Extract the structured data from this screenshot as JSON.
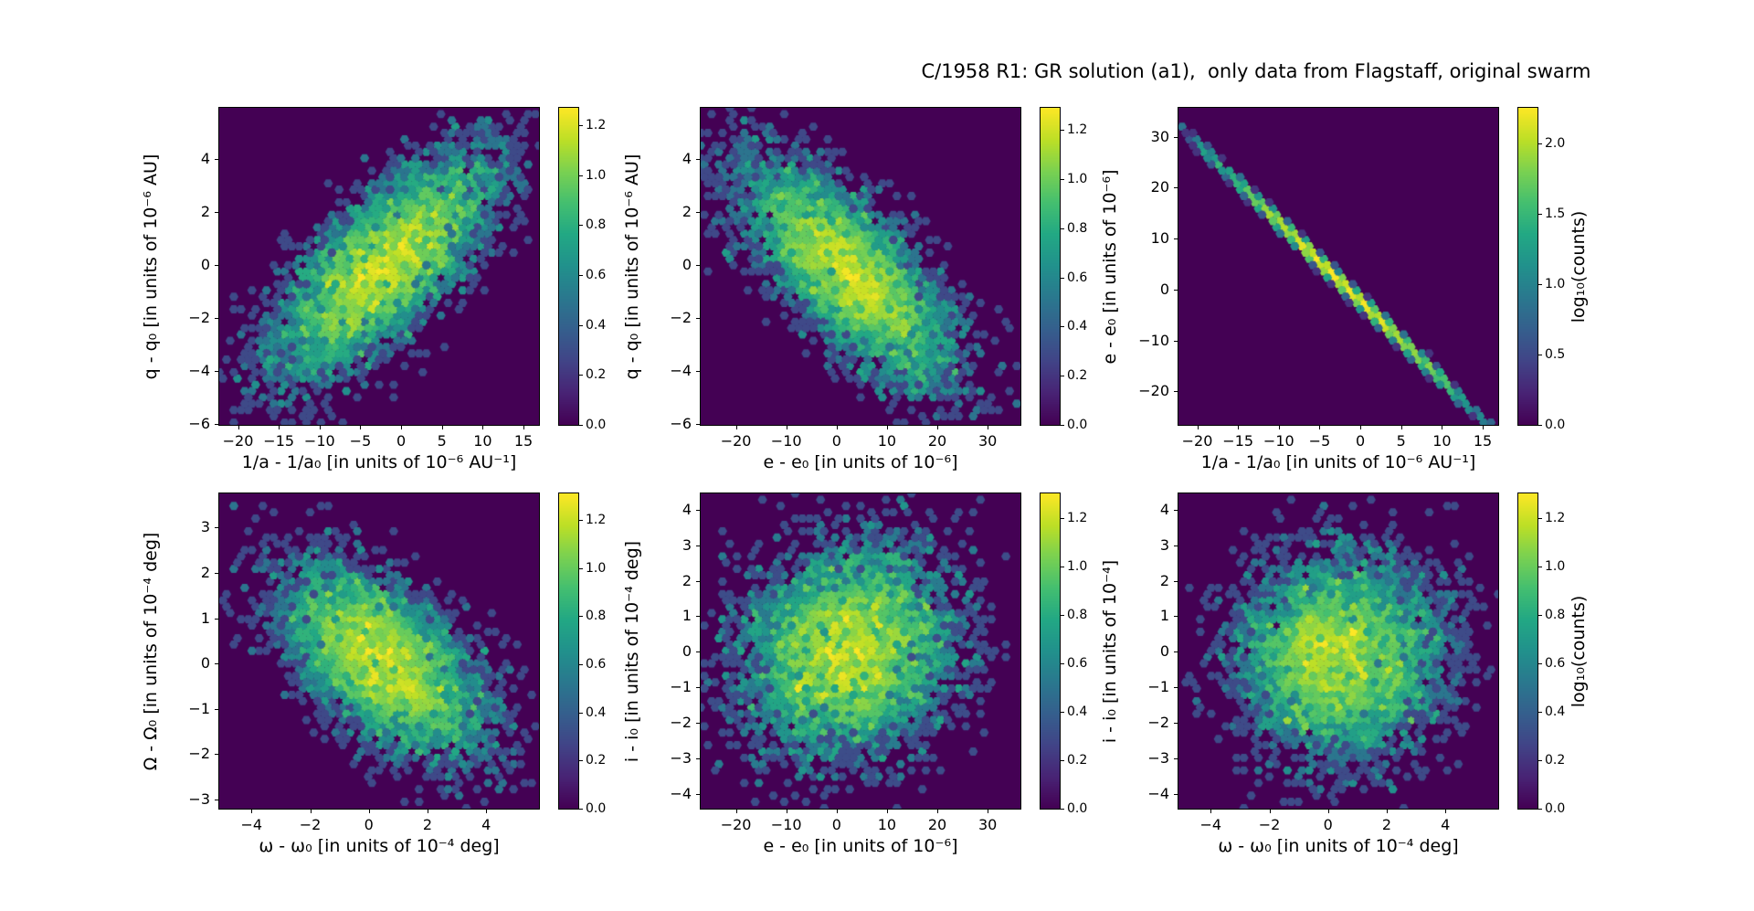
{
  "title": "C/1958 R1: GR solution (a1),  only data from Flagstaff, original swarm",
  "colormap": {
    "name": "viridis",
    "background": "#440154",
    "stops": [
      "#440154",
      "#482475",
      "#414487",
      "#355f8d",
      "#2a788e",
      "#21918c",
      "#22a884",
      "#44bf70",
      "#7ad151",
      "#bddf26",
      "#fde725"
    ]
  },
  "chart_data": [
    {
      "type": "hexbin",
      "xlabel": "1/a - 1/a₀ [in units of 10⁻⁶ AU⁻¹]",
      "ylabel": "q - q₀ [in units of 10⁻⁶ AU]",
      "xlim": [
        -22.3,
        16.9
      ],
      "ylim": [
        -6.05,
        5.95
      ],
      "xticks": [
        -20,
        -15,
        -10,
        -5,
        0,
        5,
        10,
        15
      ],
      "yticks": [
        4,
        2,
        0,
        -2,
        -4,
        -6
      ],
      "distribution": {
        "kind": "gaussian",
        "n": 5000,
        "center": [
          -2,
          0
        ],
        "sigma": [
          6.8,
          2.1
        ],
        "rho": 0.72
      },
      "colorbar": {
        "vmax": 1.27,
        "ticks": [
          0.0,
          0.2,
          0.4,
          0.6,
          0.8,
          1.0,
          1.2
        ],
        "label": null
      }
    },
    {
      "type": "hexbin",
      "xlabel": "e - e₀ [in units of 10⁻⁶]",
      "ylabel": "q - q₀ [in units of 10⁻⁶ AU]",
      "xlim": [
        -27.0,
        36.5
      ],
      "ylim": [
        -6.05,
        5.95
      ],
      "xticks": [
        -20,
        -10,
        0,
        10,
        20,
        30
      ],
      "yticks": [
        4,
        2,
        0,
        -2,
        -4,
        -6
      ],
      "distribution": {
        "kind": "gaussian",
        "n": 5000,
        "center": [
          2.5,
          -0.3
        ],
        "sigma": [
          10.5,
          2.1
        ],
        "rho": -0.72
      },
      "colorbar": {
        "vmax": 1.29,
        "ticks": [
          0.0,
          0.2,
          0.4,
          0.6,
          0.8,
          1.0,
          1.2
        ],
        "label": null
      }
    },
    {
      "type": "hexbin",
      "xlabel": "1/a - 1/a₀ [in units of 10⁻⁶ AU⁻¹]",
      "ylabel": "e - e₀ [in units of 10⁻⁶]",
      "xlim": [
        -22.3,
        16.9
      ],
      "ylim": [
        -26.6,
        35.7
      ],
      "xticks": [
        -20,
        -15,
        -10,
        -5,
        0,
        5,
        10,
        15
      ],
      "yticks": [
        30,
        20,
        10,
        0,
        -10,
        -20
      ],
      "distribution": {
        "kind": "line",
        "n": 5000,
        "x_center": -2.5,
        "x_sigma": 6.8,
        "slope": -1.55,
        "intercept": -2.3,
        "noise": 0.45
      },
      "colorbar": {
        "vmax": 2.25,
        "ticks": [
          0.0,
          0.5,
          1.0,
          1.5,
          2.0
        ],
        "label": "log₁₀(counts)"
      }
    },
    {
      "type": "hexbin",
      "xlabel": "ω - ω₀ [in units of 10⁻⁴ deg]",
      "ylabel": "Ω - Ω₀ [in units of 10⁻⁴ deg]",
      "xlim": [
        -5.1,
        5.8
      ],
      "ylim": [
        -3.2,
        3.75
      ],
      "xticks": [
        -4,
        -2,
        0,
        2,
        4
      ],
      "yticks": [
        3,
        2,
        1,
        0,
        -1,
        -2,
        -3
      ],
      "distribution": {
        "kind": "gaussian",
        "n": 5000,
        "center": [
          0.5,
          0.05
        ],
        "sigma": [
          1.7,
          1.05
        ],
        "rho": -0.58
      },
      "colorbar": {
        "vmax": 1.31,
        "ticks": [
          0.0,
          0.2,
          0.4,
          0.6,
          0.8,
          1.0,
          1.2
        ],
        "label": null
      }
    },
    {
      "type": "hexbin",
      "xlabel": "e - e₀ [in units of 10⁻⁶]",
      "ylabel": "i - i₀ [in units of 10⁻⁴ deg]",
      "xlim": [
        -27.0,
        36.5
      ],
      "ylim": [
        -4.4,
        4.45
      ],
      "xticks": [
        -20,
        -10,
        0,
        10,
        20,
        30
      ],
      "yticks": [
        4,
        3,
        2,
        1,
        0,
        -1,
        -2,
        -3,
        -4
      ],
      "distribution": {
        "kind": "gaussian",
        "n": 5000,
        "center": [
          2.5,
          0.0
        ],
        "sigma": [
          10.5,
          1.45
        ],
        "rho": 0.12
      },
      "colorbar": {
        "vmax": 1.3,
        "ticks": [
          0.0,
          0.2,
          0.4,
          0.6,
          0.8,
          1.0,
          1.2
        ],
        "label": null
      }
    },
    {
      "type": "hexbin",
      "xlabel": "ω - ω₀ [in units of 10⁻⁴ deg]",
      "ylabel": "i - i₀ [in units of 10⁻⁴]",
      "xlim": [
        -5.1,
        5.8
      ],
      "ylim": [
        -4.4,
        4.45
      ],
      "xticks": [
        -4,
        -2,
        0,
        2,
        4
      ],
      "yticks": [
        4,
        3,
        2,
        1,
        0,
        -1,
        -2,
        -3,
        -4
      ],
      "distribution": {
        "kind": "gaussian",
        "n": 5000,
        "center": [
          0.4,
          -0.1
        ],
        "sigma": [
          1.7,
          1.4
        ],
        "rho": 0.03
      },
      "colorbar": {
        "vmax": 1.3,
        "ticks": [
          0.0,
          0.2,
          0.4,
          0.6,
          0.8,
          1.0,
          1.2
        ],
        "label": "log₁₀(counts)"
      }
    }
  ]
}
